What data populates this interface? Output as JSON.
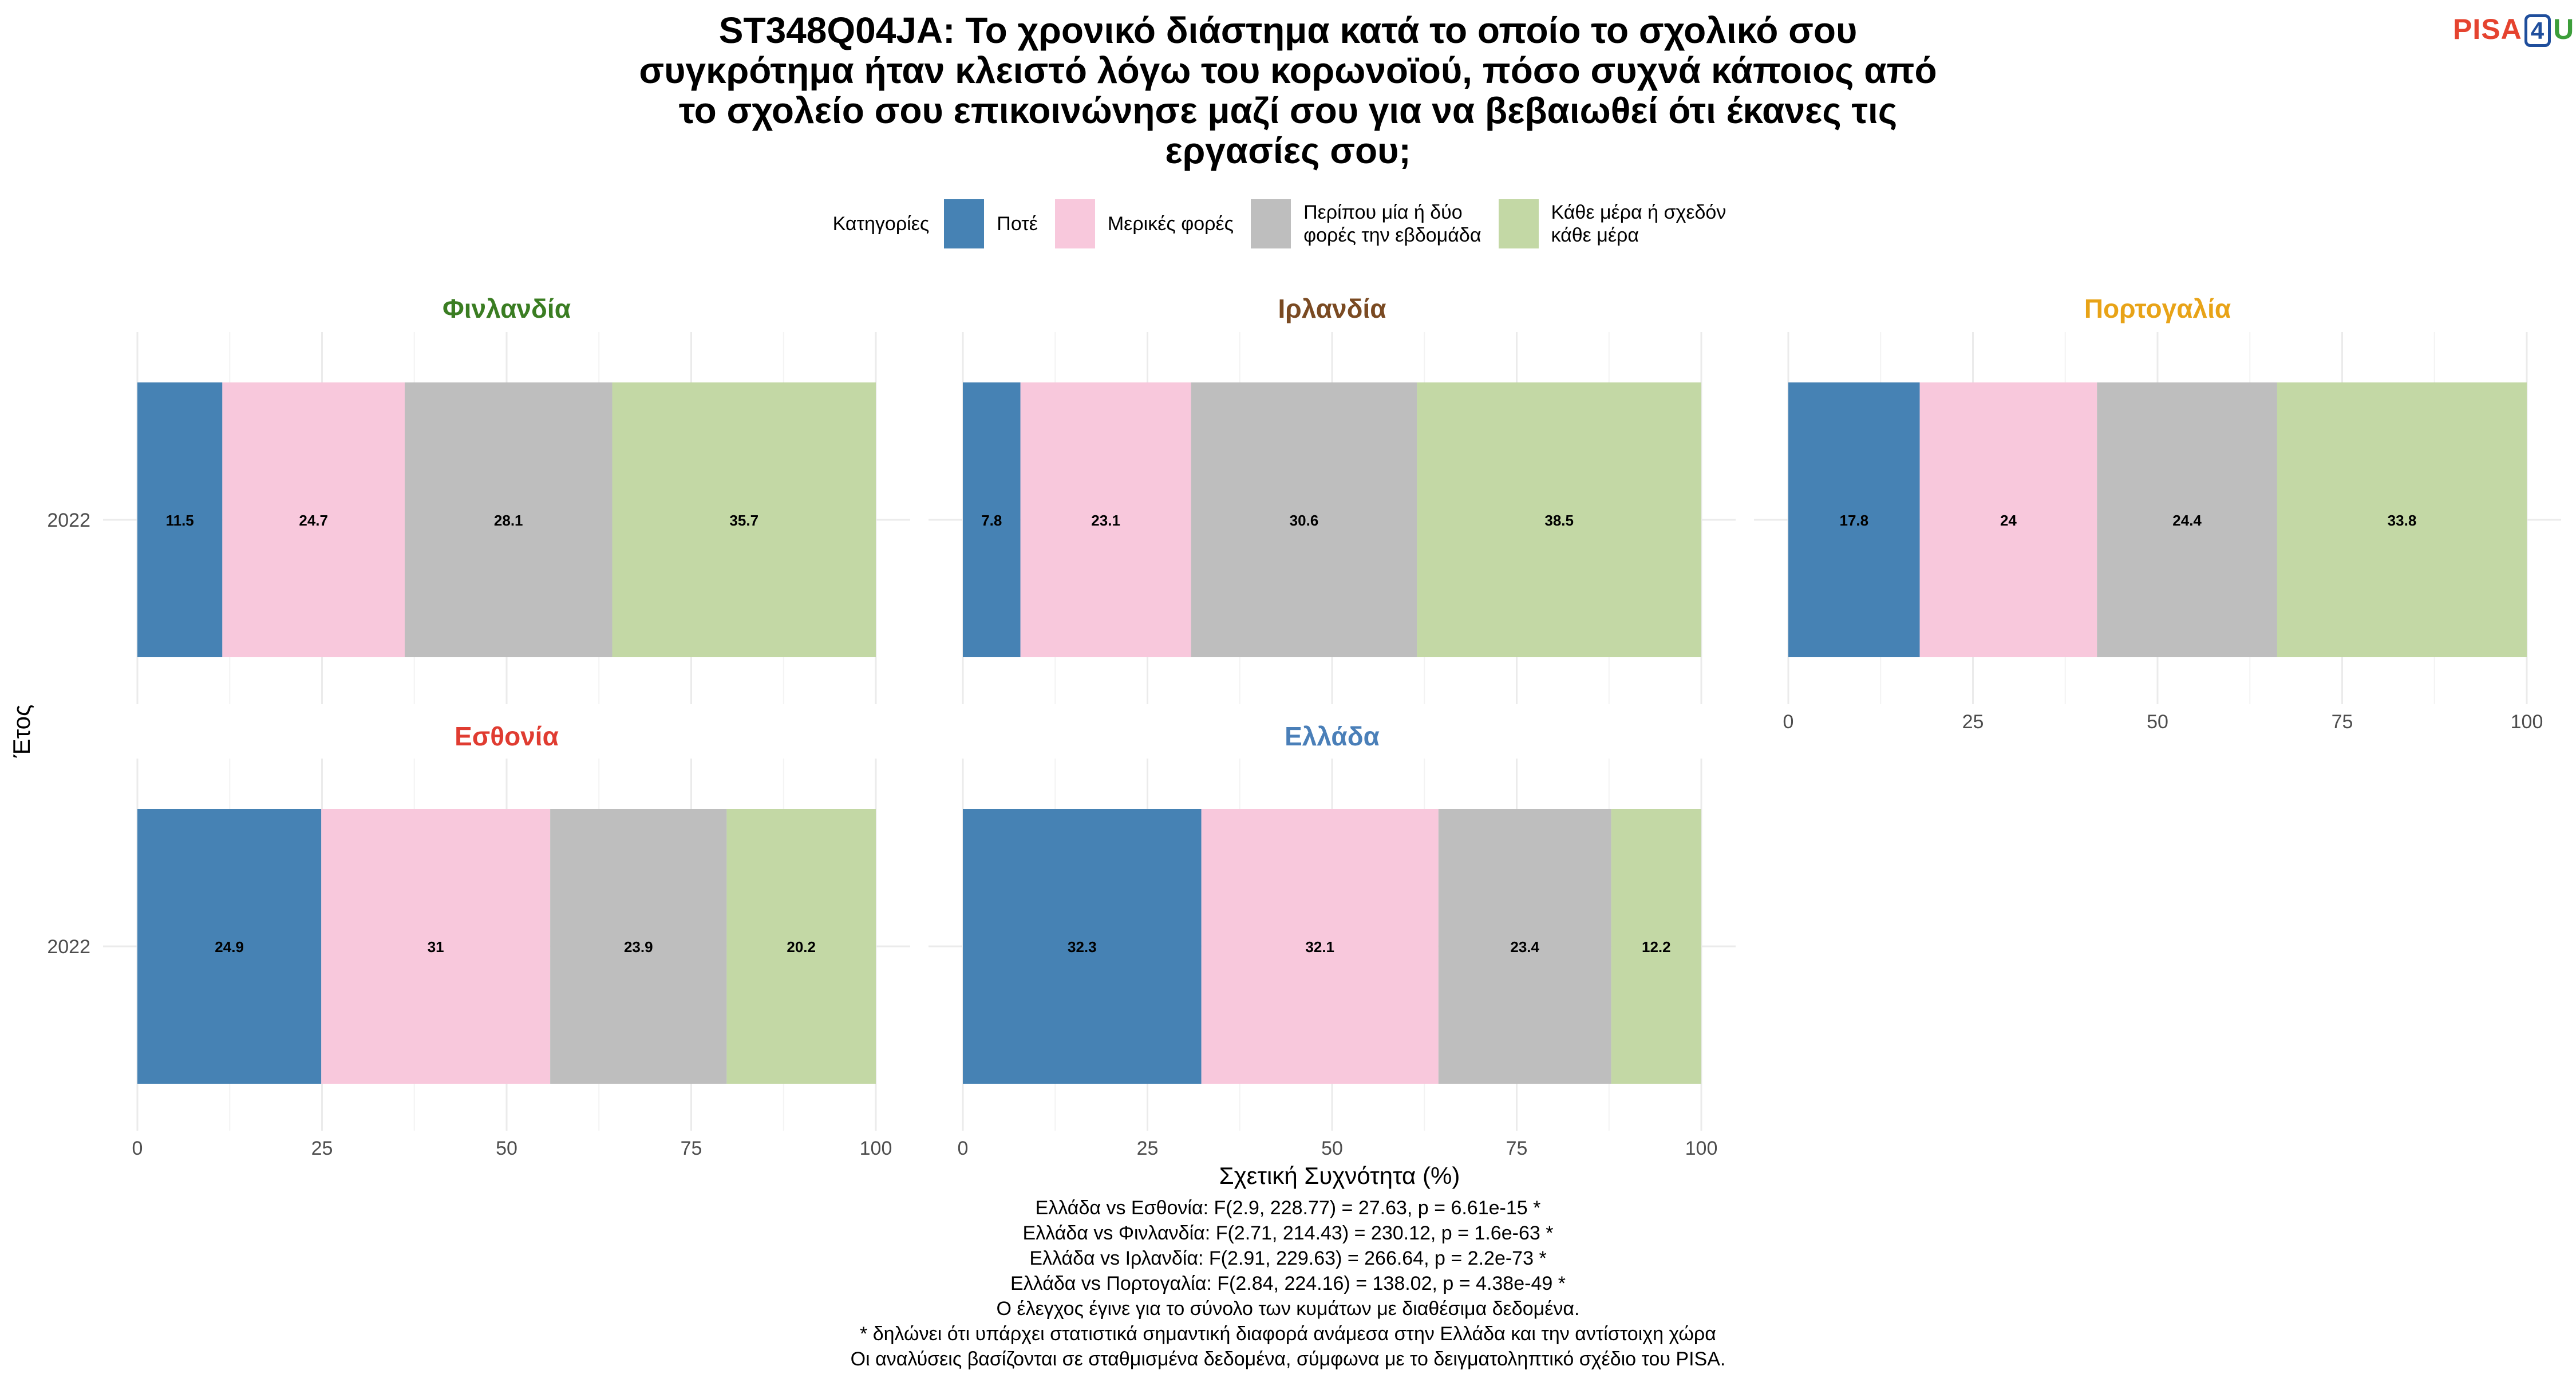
{
  "title_lines": [
    "ST348Q04JA: Το χρονικό διάστημα κατά το οποίο το σχολικό σου",
    "συγκρότημα ήταν κλειστό λόγω του κορωνοϊού, πόσο συχνά κάποιος από",
    "το σχολείο σου επικοινώνησε μαζί σου για να βεβαιωθεί ότι έκανες τις",
    "εργασίες σου;"
  ],
  "logo": {
    "p": "PISA",
    "n": "4",
    "u": "U"
  },
  "legend": {
    "title": "Κατηγορίες",
    "items": [
      {
        "label_lines": [
          "Ποτέ"
        ],
        "color": "#4682b4"
      },
      {
        "label_lines": [
          "Μερικές φορές"
        ],
        "color": "#f8c8dc"
      },
      {
        "label_lines": [
          "Περίπου μία ή δύο",
          "φορές την εβδομάδα"
        ],
        "color": "#bebebe"
      },
      {
        "label_lines": [
          "Κάθε μέρα ή σχεδόν",
          "κάθε μέρα"
        ],
        "color": "#c3d8a5"
      }
    ]
  },
  "chart_data": {
    "type": "bar",
    "orientation": "horizontal",
    "stacked": true,
    "xlabel": "Σχετική Συχνότητα (%)",
    "ylabel": "Έτος",
    "xlim": [
      0,
      100
    ],
    "xticks": [
      0,
      25,
      50,
      75,
      100
    ],
    "categories": [
      "Ποτέ",
      "Μερικές φορές",
      "Περίπου μία ή δύο φορές την εβδομάδα",
      "Κάθε μέρα ή σχεδόν κάθε μέρα"
    ],
    "colors": [
      "#4682b4",
      "#f8c8dc",
      "#bebebe",
      "#c3d8a5"
    ],
    "panels": [
      {
        "country": "Φινλανδία",
        "title_color": "#3a7d22",
        "year": "2022",
        "values": [
          11.5,
          24.7,
          28.1,
          35.7
        ],
        "labels": [
          "11.5",
          "24.7",
          "28.1",
          "35.7"
        ]
      },
      {
        "country": "Ιρλανδία",
        "title_color": "#7a4a22",
        "year": "2022",
        "values": [
          7.8,
          23.1,
          30.6,
          38.5
        ],
        "labels": [
          "7.8",
          "23.1",
          "30.6",
          "38.5"
        ]
      },
      {
        "country": "Πορτογαλία",
        "title_color": "#e8a317",
        "year": "2022",
        "values": [
          17.8,
          24,
          24.4,
          33.8
        ],
        "labels": [
          "17.8",
          "24",
          "24.4",
          "33.8"
        ]
      },
      {
        "country": "Εσθονία",
        "title_color": "#e03c31",
        "year": "2022",
        "values": [
          24.9,
          31,
          23.9,
          20.2
        ],
        "labels": [
          "24.9",
          "31",
          "23.9",
          "20.2"
        ]
      },
      {
        "country": "Ελλάδα",
        "title_color": "#4a7fb8",
        "year": "2022",
        "values": [
          32.3,
          32.1,
          23.4,
          12.2
        ],
        "labels": [
          "32.3",
          "32.1",
          "23.4",
          "12.2"
        ]
      }
    ]
  },
  "footer_lines": [
    "Ελλάδα vs Εσθονία: F(2.9, 228.77) = 27.63, p = 6.61e-15 *",
    "Ελλάδα vs Φινλανδία: F(2.71, 214.43) = 230.12, p = 1.6e-63 *",
    "Ελλάδα vs Ιρλανδία: F(2.91, 229.63) = 266.64, p = 2.2e-73 *",
    "Ελλάδα vs Πορτογαλία: F(2.84, 224.16) = 138.02, p = 4.38e-49 *",
    "Ο έλεγχος έγινε για το σύνολο των κυμάτων με διαθέσιμα δεδομένα.",
    "* δηλώνει ότι υπάρχει στατιστικά σημαντική διαφορά ανάμεσα στην Ελλάδα και την αντίστοιχη χώρα",
    "Οι αναλύσεις βασίζονται σε σταθμισμένα δεδομένα, σύμφωνα με το δειγματοληπτικό σχέδιο του PISA."
  ]
}
